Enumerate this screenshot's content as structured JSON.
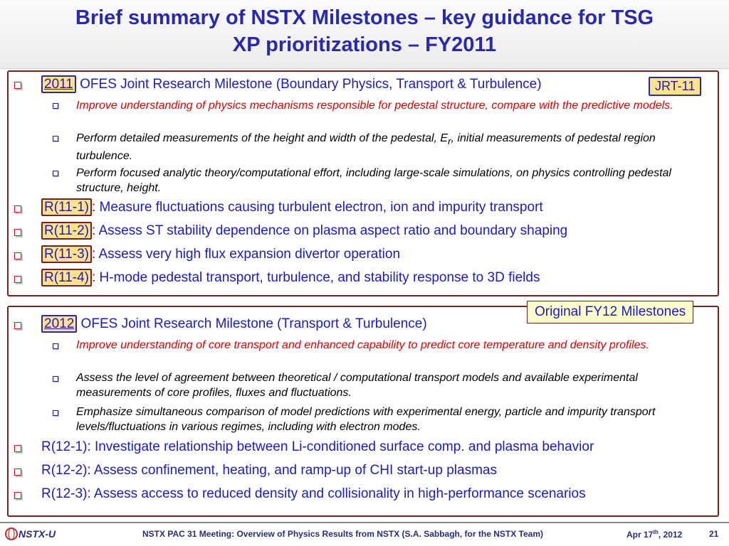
{
  "title": {
    "line1": "Brief summary of NSTX Milestones – key guidance for TSG",
    "line2": "XP prioritizations – FY2011"
  },
  "box1": {
    "joint": {
      "year": "2011",
      "text": " OFES Joint Research Milestone (Boundary Physics, Transport & Turbulence)",
      "tag": "JRT-11"
    },
    "sub1": "Improve understanding of physics mechanisms responsible for pedestal structure, compare with the predictive models.",
    "sub2_a": "Perform detailed measurements of the height and width of the pedestal, E",
    "sub2_sub": "r",
    "sub2_b": ", initial measurements of pedestal region turbulence.",
    "sub3": "Perform focused analytic theory/computational effort, including large-scale simulations, on physics controlling pedestal structure, height.",
    "milestones": [
      {
        "tag": "R(11-1)",
        "text": ": Measure fluctuations causing turbulent electron, ion and impurity transport"
      },
      {
        "tag": "R(11-2)",
        "text": ": Assess ST stability dependence on plasma aspect ratio and boundary shaping"
      },
      {
        "tag": "R(11-3)",
        "text": ": Assess very high flux expansion divertor operation"
      },
      {
        "tag": "R(11-4)",
        "text": ": H-mode pedestal transport, turbulence, and stability response to 3D fields"
      }
    ]
  },
  "callout": "Original FY12 Milestones",
  "box2": {
    "joint": {
      "year": "2012",
      "text": " OFES Joint Research Milestone (Transport & Turbulence)"
    },
    "sub1": "Improve understanding of core transport and enhanced capability to predict core temperature and density profiles.",
    "sub2": "Assess the level of agreement between theoretical / computational transport models and available experimental measurements of core profiles, fluxes and fluctuations.",
    "sub3": "Emphasize simultaneous comparison of model predictions with experimental energy, particle and impurity transport levels/fluctuations in various regimes, including with electron modes.",
    "milestones": [
      "R(12-1): Investigate relationship between Li-conditioned surface comp. and plasma behavior",
      "R(12-2): Assess confinement, heating, and ramp-up of CHI start-up plasmas",
      "R(12-3): Assess access to reduced density and collisionality in high-performance scenarios"
    ]
  },
  "footer": {
    "logo": "NSTX-U",
    "text": "NSTX PAC 31 Meeting: Overview of Physics Results from NSTX (S.A. Sabbagh, for the NSTX Team)",
    "date_pre": "Apr 17",
    "date_sup": "th",
    "date_post": ", 2012",
    "page": "21"
  },
  "colors": {
    "title": "#2828b4",
    "body_text": "#1a1acc",
    "highlight_red": "#e00000",
    "tag_fill": "#ffe28a",
    "box_border": "#7a1e1e"
  }
}
